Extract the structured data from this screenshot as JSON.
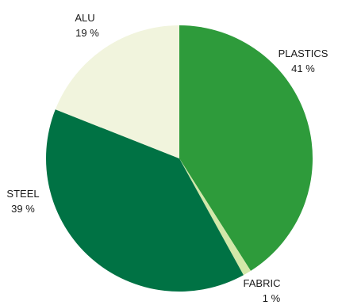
{
  "chart_data": {
    "type": "pie",
    "start_angle_deg": 0,
    "direction": "clockwise",
    "slices": [
      {
        "label": "PLASTICS",
        "value": 41,
        "value_text": "41 %",
        "color": "#2e9b3b"
      },
      {
        "label": "FABRIC",
        "value": 1,
        "value_text": "1 %",
        "color": "#d2e8a9"
      },
      {
        "label": "STEEL",
        "value": 39,
        "value_text": "39 %",
        "color": "#007244"
      },
      {
        "label": "ALU",
        "value": 19,
        "value_text": "19 %",
        "color": "#f1f4dd"
      }
    ]
  }
}
